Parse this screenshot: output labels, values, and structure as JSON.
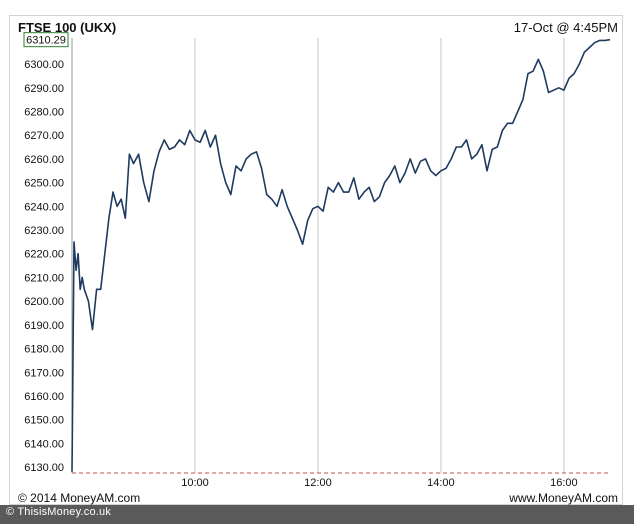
{
  "header": {
    "title": "FTSE 100 (UKX)",
    "timestamp": "17-Oct @ 4:45PM"
  },
  "footer": {
    "copyright": "© 2014 MoneyAM.com",
    "site": "www.MoneyAM.com"
  },
  "watermark": "© ThisisMoney.co.uk",
  "colors": {
    "line": "#1f3a5f",
    "grid": "#c8c8c8",
    "baseline": "#c0504d",
    "last_badge": "#2e7d32"
  },
  "chart_data": {
    "type": "line",
    "title": "FTSE 100 (UKX)",
    "xlabel": "",
    "ylabel": "",
    "x_ticks": [
      "10:00",
      "12:00",
      "14:00",
      "16:00"
    ],
    "y_ticks": [
      "6130.00",
      "6140.00",
      "6150.00",
      "6160.00",
      "6170.00",
      "6180.00",
      "6190.00",
      "6200.00",
      "6210.00",
      "6220.00",
      "6230.00",
      "6240.00",
      "6250.00",
      "6260.00",
      "6270.00",
      "6280.00",
      "6290.00",
      "6300.00"
    ],
    "ylim": [
      6127.5,
      6311
    ],
    "xlim": [
      "08:00",
      "16:45"
    ],
    "grid": "vertical",
    "last_value": 6310.29,
    "last_value_label": "6310.29",
    "series": [
      {
        "x": [
          "08:00",
          "08:02",
          "08:04",
          "08:06",
          "08:08",
          "08:10",
          "08:12",
          "08:16",
          "08:20",
          "08:24",
          "08:28",
          "08:32",
          "08:36",
          "08:40",
          "08:44",
          "08:48",
          "08:52",
          "08:56",
          "09:00",
          "09:05",
          "09:10",
          "09:15",
          "09:20",
          "09:25",
          "09:30",
          "09:35",
          "09:40",
          "09:45",
          "09:50",
          "09:55",
          "10:00",
          "10:05",
          "10:10",
          "10:15",
          "10:20",
          "10:25",
          "10:30",
          "10:35",
          "10:40",
          "10:45",
          "10:50",
          "10:55",
          "11:00",
          "11:05",
          "11:10",
          "11:15",
          "11:20",
          "11:25",
          "11:30",
          "11:35",
          "11:40",
          "11:45",
          "11:50",
          "11:55",
          "12:00",
          "12:05",
          "12:10",
          "12:15",
          "12:20",
          "12:25",
          "12:30",
          "12:35",
          "12:40",
          "12:45",
          "12:50",
          "12:55",
          "13:00",
          "13:05",
          "13:10",
          "13:15",
          "13:20",
          "13:25",
          "13:30",
          "13:35",
          "13:40",
          "13:45",
          "13:50",
          "13:55",
          "14:00",
          "14:05",
          "14:10",
          "14:15",
          "14:20",
          "14:25",
          "14:30",
          "14:35",
          "14:40",
          "14:45",
          "14:50",
          "14:55",
          "15:00",
          "15:05",
          "15:10",
          "15:15",
          "15:20",
          "15:25",
          "15:30",
          "15:35",
          "15:40",
          "15:45",
          "15:50",
          "15:55",
          "16:00",
          "16:05",
          "16:10",
          "16:15",
          "16:20",
          "16:25",
          "16:30",
          "16:35",
          "16:40",
          "16:45"
        ],
        "y": [
          6128,
          6225,
          6213,
          6220,
          6205,
          6210,
          6205,
          6200,
          6188,
          6205,
          6205,
          6220,
          6235,
          6246,
          6240,
          6243,
          6235,
          6262,
          6258,
          6262,
          6250,
          6242,
          6255,
          6263,
          6268,
          6264,
          6265,
          6268,
          6266,
          6272,
          6268,
          6267,
          6272,
          6265,
          6270,
          6258,
          6250,
          6245,
          6257,
          6255,
          6260,
          6262,
          6263,
          6256,
          6245,
          6243,
          6240,
          6247,
          6240,
          6235,
          6230,
          6224,
          6234,
          6239,
          6240,
          6238,
          6248,
          6246,
          6250,
          6246,
          6246,
          6252,
          6243,
          6246,
          6248,
          6242,
          6244,
          6250,
          6253,
          6257,
          6250,
          6254,
          6260,
          6254,
          6259,
          6260,
          6255,
          6253,
          6255,
          6256,
          6260,
          6265,
          6265,
          6268,
          6260,
          6262,
          6266,
          6255,
          6264,
          6265,
          6272,
          6275,
          6275,
          6280,
          6285,
          6296,
          6297,
          6302,
          6297,
          6288,
          6289,
          6290,
          6289,
          6294,
          6296,
          6300,
          6305,
          6307,
          6309,
          6310,
          6310,
          6310.29
        ]
      }
    ]
  }
}
